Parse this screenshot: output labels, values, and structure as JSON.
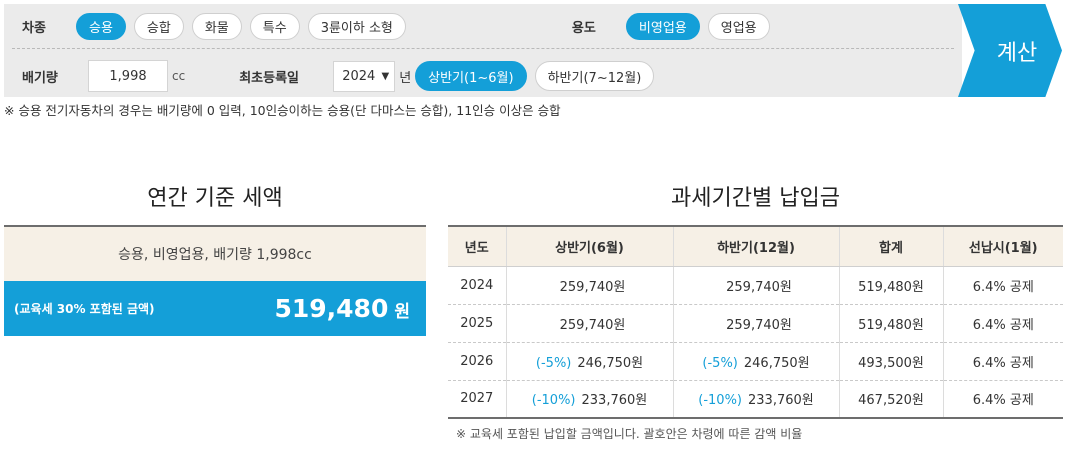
{
  "form": {
    "car_type": {
      "label": "차종",
      "options": [
        "승용",
        "승합",
        "화물",
        "특수",
        "3륜이하 소형"
      ],
      "selected": "승용"
    },
    "usage": {
      "label": "용도",
      "options": [
        "비영업용",
        "영업용"
      ],
      "selected": "비영업용"
    },
    "displacement": {
      "label": "배기량",
      "value": "1,998",
      "unit": "cc"
    },
    "registration": {
      "label": "최초등록일",
      "year": "2024",
      "year_unit": "년",
      "halves": [
        "상반기(1~6월)",
        "하반기(7~12월)"
      ],
      "selected_half": "상반기(1~6월)"
    },
    "calc_label": "계산"
  },
  "top_note": "※ 승용 전기자동차의 경우는 배기량에 0 입력, 10인승이하는 승용(단 다마스는 승합), 11인승 이상은 승합",
  "annual": {
    "title": "연간 기준 세액",
    "description": "승용, 비영업용, 배기량 1,998cc",
    "note": "(교육세 30% 포함된 금액)",
    "amount": "519,480",
    "currency": "원"
  },
  "period": {
    "title": "과세기간별 납입금",
    "headers": [
      "년도",
      "상반기(6월)",
      "하반기(12월)",
      "합계",
      "선납시(1월)"
    ],
    "rows": [
      {
        "year": "2024",
        "h1_disc": "",
        "h1": "259,740원",
        "h2_disc": "",
        "h2": "259,740원",
        "total": "519,480원",
        "prepay": "6.4% 공제"
      },
      {
        "year": "2025",
        "h1_disc": "",
        "h1": "259,740원",
        "h2_disc": "",
        "h2": "259,740원",
        "total": "519,480원",
        "prepay": "6.4% 공제"
      },
      {
        "year": "2026",
        "h1_disc": "(-5%)",
        "h1": "246,750원",
        "h2_disc": "(-5%)",
        "h2": "246,750원",
        "total": "493,500원",
        "prepay": "6.4% 공제"
      },
      {
        "year": "2027",
        "h1_disc": "(-10%)",
        "h1": "233,760원",
        "h2_disc": "(-10%)",
        "h2": "233,760원",
        "total": "467,520원",
        "prepay": "6.4% 공제"
      }
    ],
    "note": "※ 교육세 포함된 납입할 금액입니다. 괄호안은 차령에 따른 감액 비율"
  },
  "colors": {
    "accent": "#149fd8",
    "panel": "#ebebeb",
    "beige": "#f6f0e6"
  }
}
